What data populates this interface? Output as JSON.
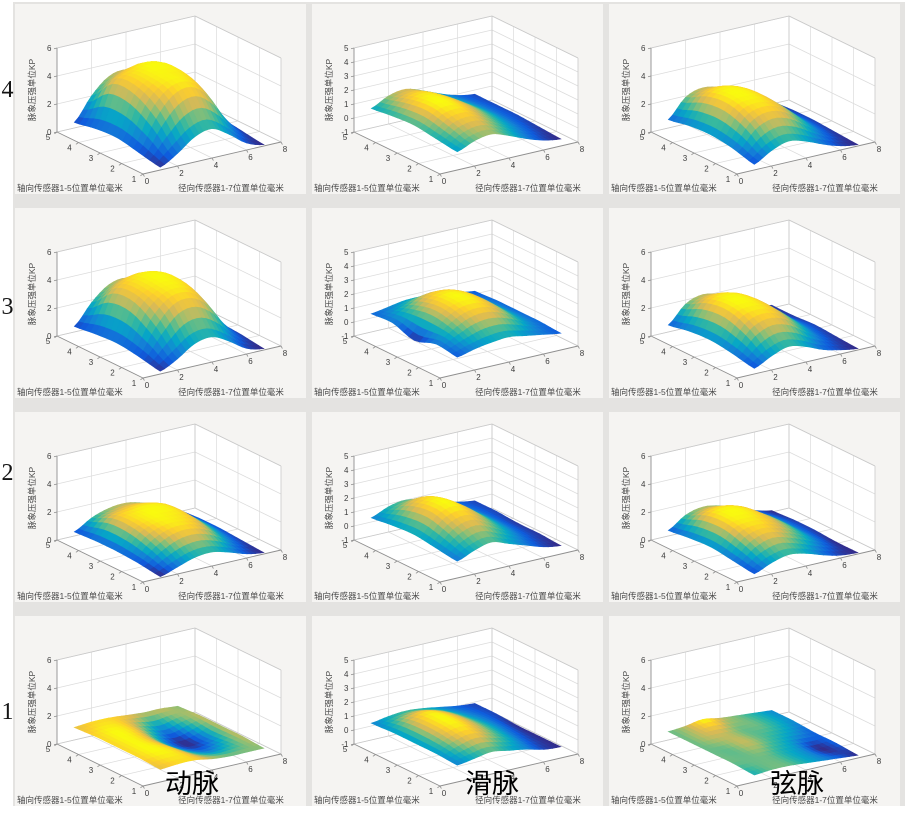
{
  "row_labels": [
    "4",
    "3",
    "2",
    "1"
  ],
  "col_labels": [
    "动脉",
    "滑脉",
    "弦脉"
  ],
  "axes_labels": {
    "z": "脉象压强单位KP",
    "axial": "轴向传感器1-5位置单位毫米",
    "radial": "径向传感器1-7位置单位毫米"
  },
  "colors": {
    "tile_bg": "#f5f4f2",
    "gutter": "#e4e3e1",
    "wall": "#ffffff",
    "grid": "#dcdcdc",
    "edge_dark": "#8f8f8f",
    "edge_light": "#c9c9c9",
    "tick_text": "#3c3c3c",
    "label_text": "#4a4a4a",
    "colormap": "parula"
  },
  "chart_data": [
    {
      "row": "4",
      "column": "动脉",
      "type": "surface",
      "zlim": [
        0,
        6
      ],
      "z_ticks": [
        0,
        2,
        4,
        6
      ],
      "radial_lim": [
        0,
        8
      ],
      "radial_ticks": [
        0,
        2,
        4,
        6,
        8
      ],
      "axial_lim": [
        1,
        5
      ],
      "axial_ticks": [
        1,
        2,
        3,
        4,
        5
      ],
      "radial_positions": [
        1,
        2,
        3,
        4,
        5,
        6,
        7
      ],
      "axial_positions": [
        1,
        2,
        3,
        4,
        5
      ],
      "z_values_by_axial": [
        [
          0.2,
          0.9,
          1.8,
          2.1,
          1.4,
          0.5,
          0.1
        ],
        [
          0.5,
          2.6,
          4.0,
          4.3,
          3.4,
          1.5,
          0.3
        ],
        [
          0.8,
          3.6,
          4.5,
          4.6,
          4.2,
          2.2,
          0.5
        ],
        [
          0.7,
          3.6,
          4.3,
          4.6,
          4.1,
          2.1,
          0.5
        ],
        [
          0.4,
          2.0,
          3.1,
          3.3,
          2.6,
          1.1,
          0.3
        ]
      ]
    },
    {
      "row": "4",
      "column": "滑脉",
      "type": "surface",
      "zlim": [
        -1,
        5
      ],
      "z_ticks": [
        -1,
        0,
        1,
        2,
        3,
        4,
        5
      ],
      "radial_lim": [
        0,
        8
      ],
      "radial_ticks": [
        0,
        2,
        4,
        6,
        8
      ],
      "axial_lim": [
        1,
        5
      ],
      "axial_ticks": [
        1,
        2,
        3,
        4,
        5
      ],
      "radial_positions": [
        1,
        2,
        3,
        4,
        5,
        6,
        7
      ],
      "axial_positions": [
        1,
        2,
        3,
        4,
        5
      ],
      "z_values_by_axial": [
        [
          0.3,
          0.8,
          1.0,
          0.6,
          0.1,
          -0.3,
          -0.5
        ],
        [
          0.5,
          1.3,
          1.5,
          1.0,
          0.4,
          -0.1,
          -0.4
        ],
        [
          0.7,
          1.7,
          1.8,
          1.3,
          0.6,
          0.0,
          -0.3
        ],
        [
          0.6,
          1.5,
          1.7,
          1.2,
          0.5,
          0.0,
          -0.3
        ],
        [
          0.4,
          1.0,
          1.2,
          0.8,
          0.3,
          -0.1,
          -0.3
        ]
      ]
    },
    {
      "row": "4",
      "column": "弦脉",
      "type": "surface",
      "zlim": [
        0,
        6
      ],
      "z_ticks": [
        0,
        2,
        4,
        6
      ],
      "radial_lim": [
        0,
        8
      ],
      "radial_ticks": [
        0,
        2,
        4,
        6,
        8
      ],
      "axial_lim": [
        1,
        5
      ],
      "axial_ticks": [
        1,
        2,
        3,
        4,
        5
      ],
      "radial_positions": [
        1,
        2,
        3,
        4,
        5,
        6,
        7
      ],
      "axial_positions": [
        1,
        2,
        3,
        4,
        5
      ],
      "z_values_by_axial": [
        [
          0.4,
          1.1,
          1.5,
          1.2,
          0.7,
          0.3,
          0.1
        ],
        [
          0.8,
          2.3,
          2.8,
          2.5,
          1.6,
          0.7,
          0.2
        ],
        [
          1.0,
          2.9,
          3.2,
          2.9,
          2.0,
          0.9,
          0.3
        ],
        [
          0.9,
          2.7,
          3.1,
          2.8,
          1.9,
          0.8,
          0.3
        ],
        [
          0.6,
          1.9,
          2.3,
          2.0,
          1.3,
          0.6,
          0.2
        ]
      ]
    },
    {
      "row": "3",
      "column": "动脉",
      "type": "surface",
      "zlim": [
        0,
        6
      ],
      "z_ticks": [
        0,
        2,
        4,
        6
      ],
      "radial_lim": [
        0,
        8
      ],
      "radial_ticks": [
        0,
        2,
        4,
        6,
        8
      ],
      "axial_lim": [
        1,
        5
      ],
      "axial_ticks": [
        1,
        2,
        3,
        4,
        5
      ],
      "radial_positions": [
        1,
        2,
        3,
        4,
        5,
        6,
        7
      ],
      "axial_positions": [
        1,
        2,
        3,
        4,
        5
      ],
      "z_values_by_axial": [
        [
          0.2,
          0.8,
          1.6,
          1.8,
          1.2,
          0.4,
          0.1
        ],
        [
          0.5,
          2.3,
          3.6,
          3.8,
          3.0,
          1.3,
          0.3
        ],
        [
          0.7,
          3.3,
          4.1,
          4.3,
          3.8,
          1.9,
          0.4
        ],
        [
          0.6,
          3.2,
          4.0,
          4.2,
          3.7,
          1.8,
          0.4
        ],
        [
          0.4,
          1.8,
          2.8,
          3.0,
          2.3,
          1.0,
          0.3
        ]
      ]
    },
    {
      "row": "3",
      "column": "滑脉",
      "type": "surface",
      "zlim": [
        -1,
        5
      ],
      "z_ticks": [
        -1,
        0,
        1,
        2,
        3,
        4,
        5
      ],
      "radial_lim": [
        0,
        8
      ],
      "radial_ticks": [
        0,
        2,
        4,
        6,
        8
      ],
      "axial_lim": [
        1,
        5
      ],
      "axial_ticks": [
        1,
        2,
        3,
        4,
        5
      ],
      "radial_positions": [
        1,
        2,
        3,
        4,
        5,
        6,
        7
      ],
      "axial_positions": [
        1,
        2,
        3,
        4,
        5
      ],
      "z_values_by_axial": [
        [
          0.2,
          0.5,
          0.7,
          0.8,
          0.6,
          0.4,
          0.2
        ],
        [
          0.4,
          1.1,
          1.7,
          1.8,
          1.4,
          0.7,
          0.3
        ],
        [
          -0.1,
          1.4,
          2.1,
          2.2,
          1.7,
          0.8,
          0.3
        ],
        [
          0.4,
          1.1,
          1.8,
          1.9,
          1.5,
          0.7,
          0.3
        ],
        [
          0.3,
          0.5,
          0.7,
          0.7,
          0.6,
          0.4,
          0.2
        ]
      ]
    },
    {
      "row": "3",
      "column": "弦脉",
      "type": "surface",
      "zlim": [
        0,
        6
      ],
      "z_ticks": [
        0,
        2,
        4,
        6
      ],
      "radial_lim": [
        0,
        8
      ],
      "radial_ticks": [
        0,
        2,
        4,
        6,
        8
      ],
      "axial_lim": [
        1,
        5
      ],
      "axial_ticks": [
        1,
        2,
        3,
        4,
        5
      ],
      "radial_positions": [
        1,
        2,
        3,
        4,
        5,
        6,
        7
      ],
      "axial_positions": [
        1,
        2,
        3,
        4,
        5
      ],
      "z_values_by_axial": [
        [
          0.4,
          1.0,
          1.4,
          1.1,
          0.6,
          0.3,
          0.1
        ],
        [
          0.7,
          2.1,
          2.6,
          2.3,
          1.4,
          0.6,
          0.2
        ],
        [
          0.9,
          2.7,
          3.0,
          2.7,
          1.8,
          0.8,
          0.3
        ],
        [
          0.8,
          2.5,
          2.9,
          2.6,
          1.7,
          0.7,
          0.2
        ],
        [
          0.5,
          1.7,
          2.1,
          1.8,
          1.2,
          0.5,
          0.2
        ]
      ]
    },
    {
      "row": "2",
      "column": "动脉",
      "type": "surface",
      "zlim": [
        0,
        6
      ],
      "z_ticks": [
        0,
        2,
        4,
        6
      ],
      "radial_lim": [
        0,
        8
      ],
      "radial_ticks": [
        0,
        2,
        4,
        6,
        8
      ],
      "axial_lim": [
        1,
        5
      ],
      "axial_ticks": [
        1,
        2,
        3,
        4,
        5
      ],
      "radial_positions": [
        1,
        2,
        3,
        4,
        5,
        6,
        7
      ],
      "axial_positions": [
        1,
        2,
        3,
        4,
        5
      ],
      "z_values_by_axial": [
        [
          0.1,
          0.5,
          0.9,
          1.0,
          0.7,
          0.3,
          0.1
        ],
        [
          0.3,
          1.2,
          1.8,
          1.9,
          1.5,
          0.7,
          0.2
        ],
        [
          0.4,
          1.7,
          2.1,
          2.1,
          1.9,
          1.0,
          0.3
        ],
        [
          0.4,
          1.7,
          2.0,
          2.1,
          1.9,
          1.0,
          0.3
        ],
        [
          0.3,
          1.0,
          1.4,
          1.5,
          1.2,
          0.6,
          0.2
        ]
      ]
    },
    {
      "row": "2",
      "column": "滑脉",
      "type": "surface",
      "zlim": [
        -1,
        5
      ],
      "z_ticks": [
        -1,
        0,
        1,
        2,
        3,
        4,
        5
      ],
      "radial_lim": [
        0,
        8
      ],
      "radial_ticks": [
        0,
        2,
        4,
        6,
        8
      ],
      "axial_lim": [
        1,
        5
      ],
      "axial_ticks": [
        1,
        2,
        3,
        4,
        5
      ],
      "radial_positions": [
        1,
        2,
        3,
        4,
        5,
        6,
        7
      ],
      "axial_positions": [
        1,
        2,
        3,
        4,
        5
      ],
      "z_values_by_axial": [
        [
          0.2,
          0.7,
          1.0,
          0.6,
          0.2,
          -0.2,
          -0.4
        ],
        [
          0.4,
          1.4,
          1.8,
          1.3,
          0.6,
          0.0,
          -0.3
        ],
        [
          0.6,
          1.9,
          2.3,
          1.7,
          0.8,
          0.1,
          -0.3
        ],
        [
          0.5,
          1.6,
          2.0,
          1.5,
          0.7,
          0.1,
          -0.2
        ],
        [
          0.3,
          0.8,
          1.0,
          0.7,
          0.3,
          0.0,
          -0.2
        ]
      ]
    },
    {
      "row": "2",
      "column": "弦脉",
      "type": "surface",
      "zlim": [
        0,
        6
      ],
      "z_ticks": [
        0,
        2,
        4,
        6
      ],
      "radial_lim": [
        0,
        8
      ],
      "radial_ticks": [
        0,
        2,
        4,
        6,
        8
      ],
      "axial_lim": [
        1,
        5
      ],
      "axial_ticks": [
        1,
        2,
        3,
        4,
        5
      ],
      "radial_positions": [
        1,
        2,
        3,
        4,
        5,
        6,
        7
      ],
      "axial_positions": [
        1,
        2,
        3,
        4,
        5
      ],
      "z_values_by_axial": [
        [
          0.3,
          0.8,
          1.1,
          0.9,
          0.5,
          0.2,
          0.1
        ],
        [
          0.5,
          1.5,
          1.9,
          1.6,
          1.1,
          0.5,
          0.1
        ],
        [
          0.7,
          2.0,
          2.2,
          2.0,
          1.4,
          0.6,
          0.2
        ],
        [
          0.6,
          1.9,
          2.2,
          2.0,
          1.3,
          0.6,
          0.2
        ],
        [
          0.4,
          1.2,
          1.5,
          1.3,
          0.9,
          0.4,
          0.1
        ]
      ]
    },
    {
      "row": "1",
      "column": "动脉",
      "type": "surface",
      "zlim": [
        0,
        6
      ],
      "z_ticks": [
        0,
        2,
        4,
        6
      ],
      "radial_lim": [
        0,
        8
      ],
      "radial_ticks": [
        0,
        2,
        4,
        6,
        8
      ],
      "axial_lim": [
        1,
        5
      ],
      "axial_ticks": [
        1,
        2,
        3,
        4,
        5
      ],
      "radial_positions": [
        1,
        2,
        3,
        4,
        5,
        6,
        7
      ],
      "axial_positions": [
        1,
        2,
        3,
        4,
        5
      ],
      "z_values_by_axial": [
        [
          0.9,
          1.0,
          1.0,
          0.8,
          0.7,
          0.7,
          0.7
        ],
        [
          1.0,
          1.1,
          1.0,
          0.5,
          0.3,
          0.5,
          0.8
        ],
        [
          1.0,
          1.1,
          0.9,
          0.3,
          0.05,
          0.3,
          0.8
        ],
        [
          1.0,
          1.1,
          1.0,
          0.6,
          0.3,
          0.6,
          0.8
        ],
        [
          0.9,
          1.0,
          1.0,
          0.9,
          0.8,
          0.8,
          0.7
        ]
      ]
    },
    {
      "row": "1",
      "column": "滑脉",
      "type": "surface",
      "zlim": [
        -1,
        5
      ],
      "z_ticks": [
        -1,
        0,
        1,
        2,
        3,
        4,
        5
      ],
      "radial_lim": [
        0,
        8
      ],
      "radial_ticks": [
        0,
        2,
        4,
        6,
        8
      ],
      "axial_lim": [
        1,
        5
      ],
      "axial_ticks": [
        1,
        2,
        3,
        4,
        5
      ],
      "radial_positions": [
        1,
        2,
        3,
        4,
        5,
        6,
        7
      ],
      "axial_positions": [
        1,
        2,
        3,
        4,
        5
      ],
      "z_values_by_axial": [
        [
          0.2,
          0.4,
          0.6,
          0.4,
          0.2,
          -0.1,
          -0.2
        ],
        [
          0.3,
          0.8,
          1.1,
          0.8,
          0.4,
          0.0,
          -0.2
        ],
        [
          0.3,
          1.0,
          1.3,
          1.0,
          0.5,
          0.1,
          -0.2
        ],
        [
          0.3,
          0.9,
          1.2,
          0.9,
          0.4,
          0.1,
          -0.1
        ],
        [
          0.2,
          0.4,
          0.5,
          0.4,
          0.2,
          0.0,
          -0.1
        ]
      ]
    },
    {
      "row": "1",
      "column": "弦脉",
      "type": "surface",
      "zlim": [
        0,
        6
      ],
      "z_ticks": [
        0,
        2,
        4,
        6
      ],
      "radial_lim": [
        0,
        8
      ],
      "radial_ticks": [
        0,
        2,
        4,
        6,
        8
      ],
      "axial_lim": [
        1,
        5
      ],
      "axial_ticks": [
        1,
        2,
        3,
        4,
        5
      ],
      "radial_positions": [
        1,
        2,
        3,
        4,
        5,
        6,
        7
      ],
      "axial_positions": [
        1,
        2,
        3,
        4,
        5
      ],
      "z_values_by_axial": [
        [
          0.5,
          0.6,
          0.6,
          0.5,
          0.4,
          0.3,
          0.2
        ],
        [
          0.6,
          0.6,
          0.6,
          0.5,
          0.4,
          0.2,
          0.3
        ],
        [
          0.6,
          0.6,
          0.7,
          0.6,
          0.5,
          0.4,
          0.3
        ],
        [
          0.6,
          0.7,
          0.7,
          0.6,
          0.6,
          0.5,
          0.4
        ],
        [
          0.6,
          0.7,
          0.9,
          0.7,
          0.6,
          0.5,
          0.4
        ]
      ]
    }
  ]
}
